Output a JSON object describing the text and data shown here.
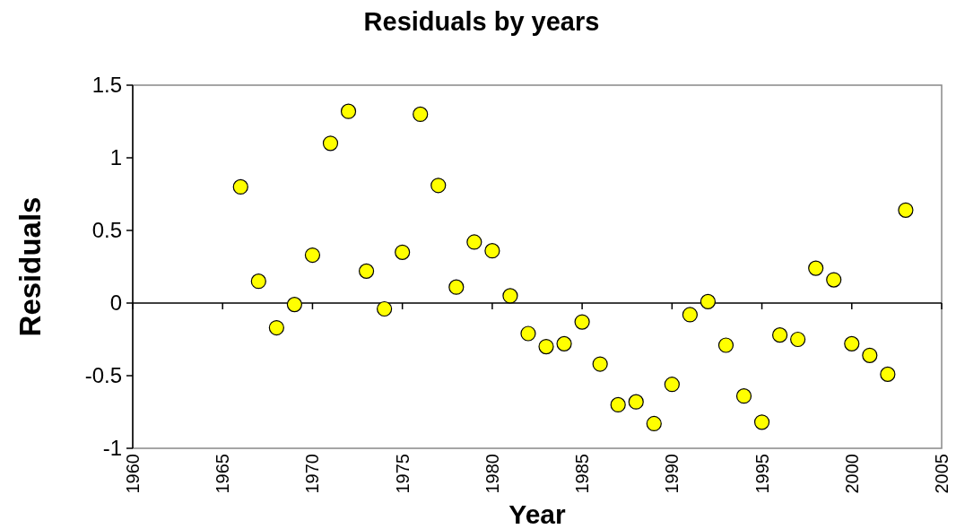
{
  "chart_data": {
    "type": "scatter",
    "title": "Residuals by years",
    "xlabel": "Year",
    "ylabel": "Residuals",
    "x": [
      1966,
      1967,
      1968,
      1969,
      1970,
      1971,
      1972,
      1973,
      1974,
      1975,
      1976,
      1977,
      1978,
      1979,
      1980,
      1981,
      1982,
      1983,
      1984,
      1985,
      1986,
      1987,
      1988,
      1989,
      1990,
      1991,
      1992,
      1993,
      1994,
      1995,
      1996,
      1997,
      1998,
      1999,
      2000,
      2001,
      2002,
      2003
    ],
    "series": [
      {
        "color": "#ffff00",
        "values": [
          0.8,
          0.15,
          -0.17,
          -0.01,
          0.33,
          1.1,
          1.32,
          0.22,
          -0.04,
          0.35,
          1.3,
          0.81,
          0.11,
          0.42,
          0.36,
          0.05,
          -0.21,
          -0.3,
          -0.28,
          -0.13,
          -0.42,
          -0.7,
          -0.68,
          -0.83,
          -0.56,
          -0.08,
          0.01,
          -0.29,
          -0.64,
          -0.82,
          -0.22,
          -0.25,
          0.24,
          0.16,
          -0.28,
          -0.36,
          -0.49,
          0.64
        ]
      }
    ],
    "xlim": [
      1960,
      2005
    ],
    "xticks": [
      1960,
      1965,
      1970,
      1975,
      1980,
      1985,
      1990,
      1995,
      2000,
      2005
    ],
    "ylim": [
      -1,
      1.5
    ],
    "yticks": [
      -1,
      -0.5,
      0,
      0.5,
      1,
      1.5
    ],
    "marker": "circle"
  }
}
